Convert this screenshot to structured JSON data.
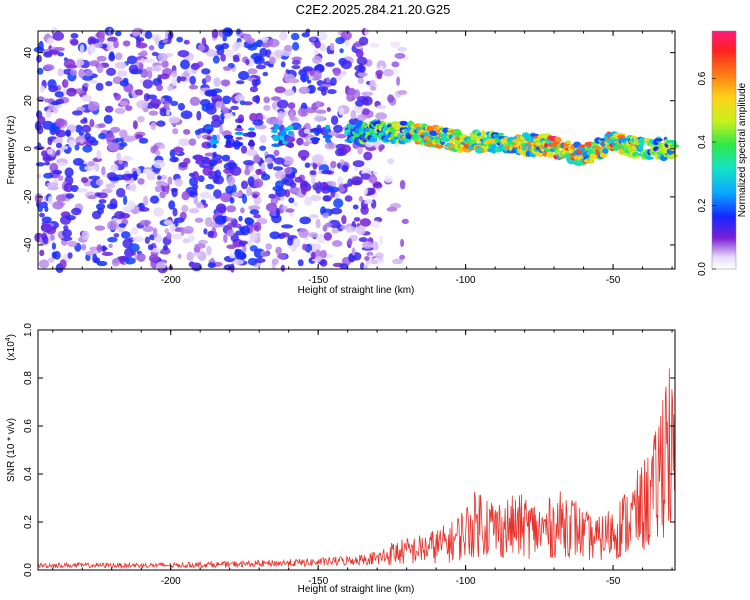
{
  "chart_data": [
    {
      "type": "heatmap",
      "title": "C2E2.2025.284.21.20.G25",
      "xlabel": "Height of straight line (km)",
      "ylabel": "Frequency (Hz)",
      "xlim": [
        -245,
        -29
      ],
      "ylim": [
        -50,
        49
      ],
      "xticks": [
        -200,
        -150,
        -100,
        -50
      ],
      "xtick_labels": [
        "-200",
        "-150",
        "-100",
        "-50"
      ],
      "yticks": [
        -40,
        -20,
        0,
        20,
        40
      ],
      "ytick_labels": [
        "-40",
        "-20",
        "0",
        "20",
        "40"
      ],
      "colorbar": {
        "label": "Normalized spectral amplitude",
        "range": [
          0,
          0.75
        ],
        "ticks": [
          0,
          0.2,
          0.4,
          0.6
        ],
        "tick_labels": [
          "0.0",
          "0.2",
          "0.4",
          "0.6"
        ]
      },
      "ridge": {
        "description_points_x": [
          -190,
          -170,
          -150,
          -130,
          -120,
          -110,
          -100,
          -90,
          -80,
          -70,
          -60,
          -50,
          -40,
          -29
        ],
        "frequency_hz": [
          5,
          5,
          6,
          7,
          7,
          5,
          3,
          3,
          2,
          1,
          -3,
          3,
          0,
          0
        ],
        "peak_amplitude": [
          0.25,
          0.25,
          0.3,
          0.45,
          0.55,
          0.6,
          0.6,
          0.55,
          0.55,
          0.7,
          0.6,
          0.65,
          0.5,
          0.5
        ]
      },
      "noise_region_x": [
        -245,
        -130
      ]
    },
    {
      "type": "line",
      "xlabel": "Height of straight line (km)",
      "ylabel": "SNR (10 * v/v)",
      "scale_label": "(x10",
      "scale_exponent": "4",
      "scale_suffix": ")",
      "xlim": [
        -245,
        -29
      ],
      "ylim": [
        0,
        1.0
      ],
      "xticks": [
        -200,
        -150,
        -100,
        -50
      ],
      "xtick_labels": [
        "-200",
        "-150",
        "-100",
        "-50"
      ],
      "yticks": [
        0,
        0.2,
        0.4,
        0.6,
        0.8,
        1.0
      ],
      "ytick_labels": [
        "0.0",
        "0.2",
        "0.4",
        "0.6",
        "0.8",
        "1.0"
      ],
      "series": [
        {
          "name": "SNR",
          "color": "#e8312b",
          "envelope_x": [
            -245,
            -200,
            -170,
            -150,
            -140,
            -130,
            -125,
            -115,
            -105,
            -100,
            -95,
            -90,
            -80,
            -75,
            -65,
            -60,
            -55,
            -50,
            -45,
            -40,
            -35,
            -32,
            -30,
            -29
          ],
          "envelope_max": [
            0.03,
            0.03,
            0.04,
            0.05,
            0.06,
            0.08,
            0.12,
            0.15,
            0.2,
            0.28,
            0.36,
            0.3,
            0.32,
            0.28,
            0.35,
            0.25,
            0.22,
            0.28,
            0.35,
            0.45,
            0.6,
            1.0,
            0.8,
            0.6
          ]
        }
      ]
    }
  ],
  "colors": {
    "line": "#e8312b",
    "axis": "#000000",
    "background": "#ffffff"
  }
}
